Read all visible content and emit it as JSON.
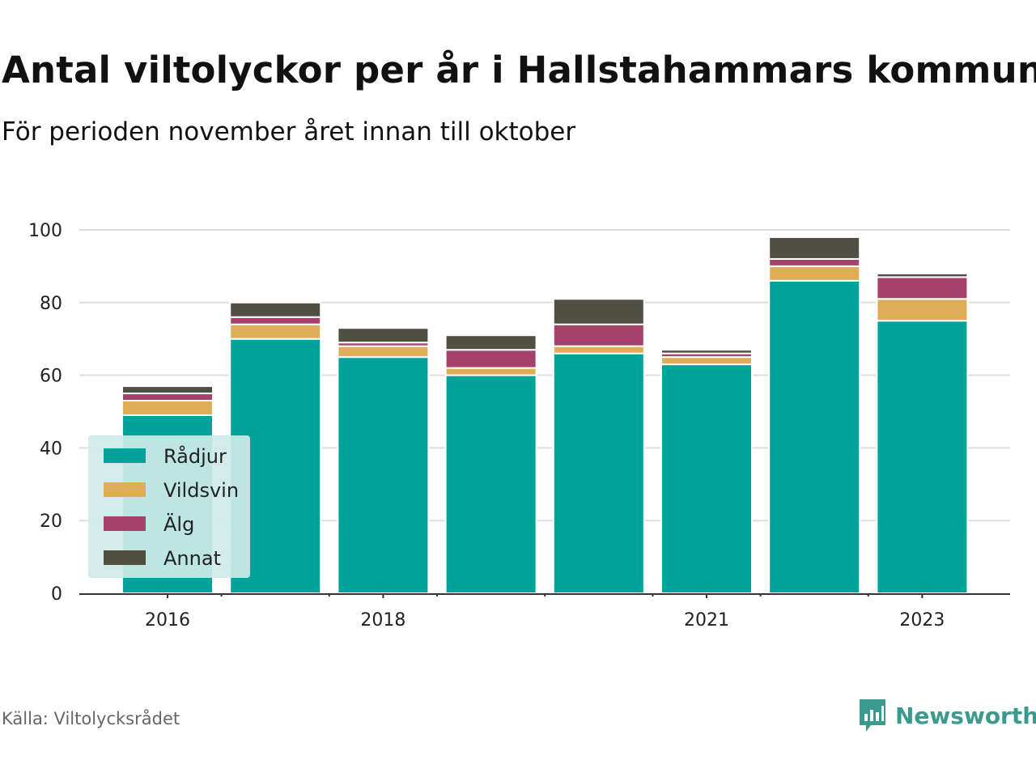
{
  "header": {
    "title": "Antal viltolyckor per år i Hallstahammars kommun",
    "subtitle": "För perioden november året innan till oktober"
  },
  "footer": {
    "source": "Källa: Viltolycksrådet",
    "brand": "Newsworthy"
  },
  "colors": {
    "Rådjur": "#00a39a",
    "Vildsvin": "#ddad57",
    "Älg": "#a6416a",
    "Annat": "#4f4f42",
    "legend_bg": "#cdeae8",
    "grid": "#dddddd",
    "axis": "#333333",
    "brand": "#3a9a8e"
  },
  "chart_data": {
    "type": "bar",
    "stacked": true,
    "categories": [
      "2016",
      "2017",
      "2018",
      "2019",
      "2020",
      "2021",
      "2022",
      "2023"
    ],
    "x_tick_labels": [
      "2016",
      "",
      "2018",
      "",
      "",
      "2021",
      "",
      "2023"
    ],
    "series": [
      {
        "name": "Rådjur",
        "values": [
          49,
          70,
          65,
          60,
          66,
          63,
          86,
          75
        ]
      },
      {
        "name": "Vildsvin",
        "values": [
          4,
          4,
          3,
          2,
          2,
          2,
          4,
          6
        ]
      },
      {
        "name": "Älg",
        "values": [
          2,
          2,
          1,
          5,
          6,
          1,
          2,
          6
        ]
      },
      {
        "name": "Annat",
        "values": [
          2,
          4,
          4,
          4,
          7,
          1,
          6,
          1
        ]
      }
    ],
    "ylim": [
      0,
      100
    ],
    "yticks": [
      0,
      20,
      40,
      60,
      80,
      100
    ],
    "grid": true,
    "legend": "bottom-left"
  }
}
